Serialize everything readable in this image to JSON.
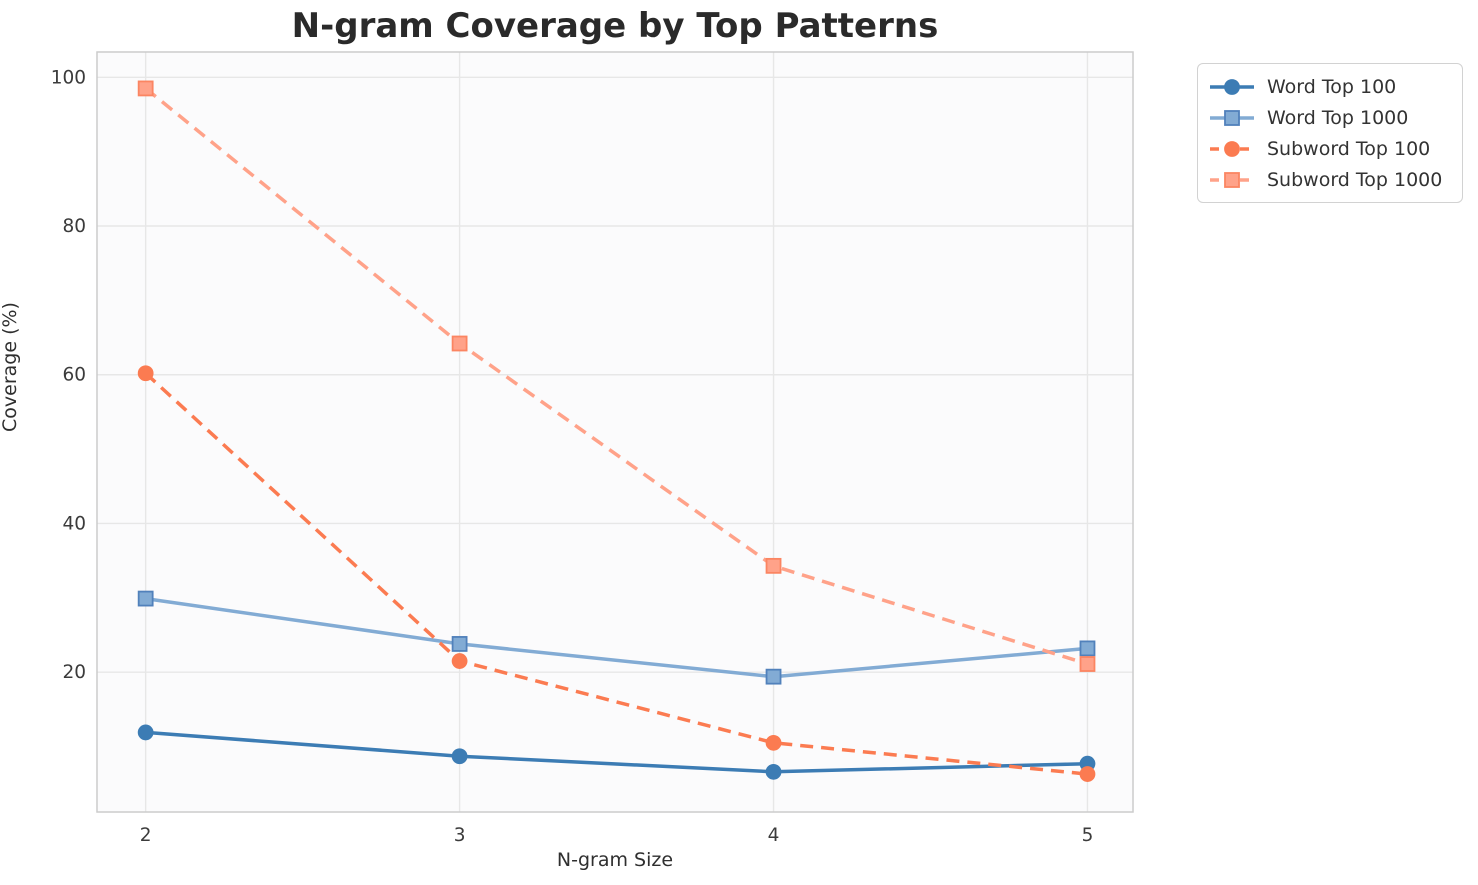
{
  "chart": {
    "title": "N-gram Coverage by Top Patterns",
    "xlabel": "N-gram Size",
    "ylabel": "Coverage (%)"
  },
  "chart_data": {
    "type": "line",
    "title": "N-gram Coverage by Top Patterns",
    "xlabel": "N-gram Size",
    "ylabel": "Coverage (%)",
    "x": [
      2,
      3,
      4,
      5
    ],
    "xticks": [
      "2",
      "3",
      "4",
      "5"
    ],
    "yticks": [
      20,
      40,
      60,
      80,
      100
    ],
    "xlim": [
      1.845,
      5.145
    ],
    "ylim": [
      1.2,
      103.4
    ],
    "grid": true,
    "legend_position": "outside-upper-right",
    "series": [
      {
        "name": "Word Top 100",
        "values": [
          11.9,
          8.7,
          6.6,
          7.7
        ],
        "color": "#3c7cb4",
        "marker_edge": "#3c7cb4",
        "marker": "circle",
        "line_style": "solid"
      },
      {
        "name": "Word Top 1000",
        "values": [
          29.9,
          23.8,
          19.4,
          23.2
        ],
        "color": "#82abd4",
        "marker_edge": "#5181bb",
        "marker": "square",
        "line_style": "solid"
      },
      {
        "name": "Subword Top 100",
        "values": [
          60.2,
          21.5,
          10.5,
          6.3
        ],
        "color": "#fb7b51",
        "marker_edge": "#fb7b51",
        "marker": "circle",
        "line_style": "dashed"
      },
      {
        "name": "Subword Top 1000",
        "values": [
          98.5,
          64.2,
          34.3,
          21.1
        ],
        "color": "#ffa289",
        "marker_edge": "#fb8562",
        "marker": "square",
        "line_style": "dashed"
      }
    ],
    "style": {
      "plot_bg": "#fbfbfc",
      "grid_color": "#e7e7e7",
      "spine_color": "#cccccc",
      "tick_label_color": "#3b3b3b",
      "title_color": "#2a2a2a"
    }
  }
}
